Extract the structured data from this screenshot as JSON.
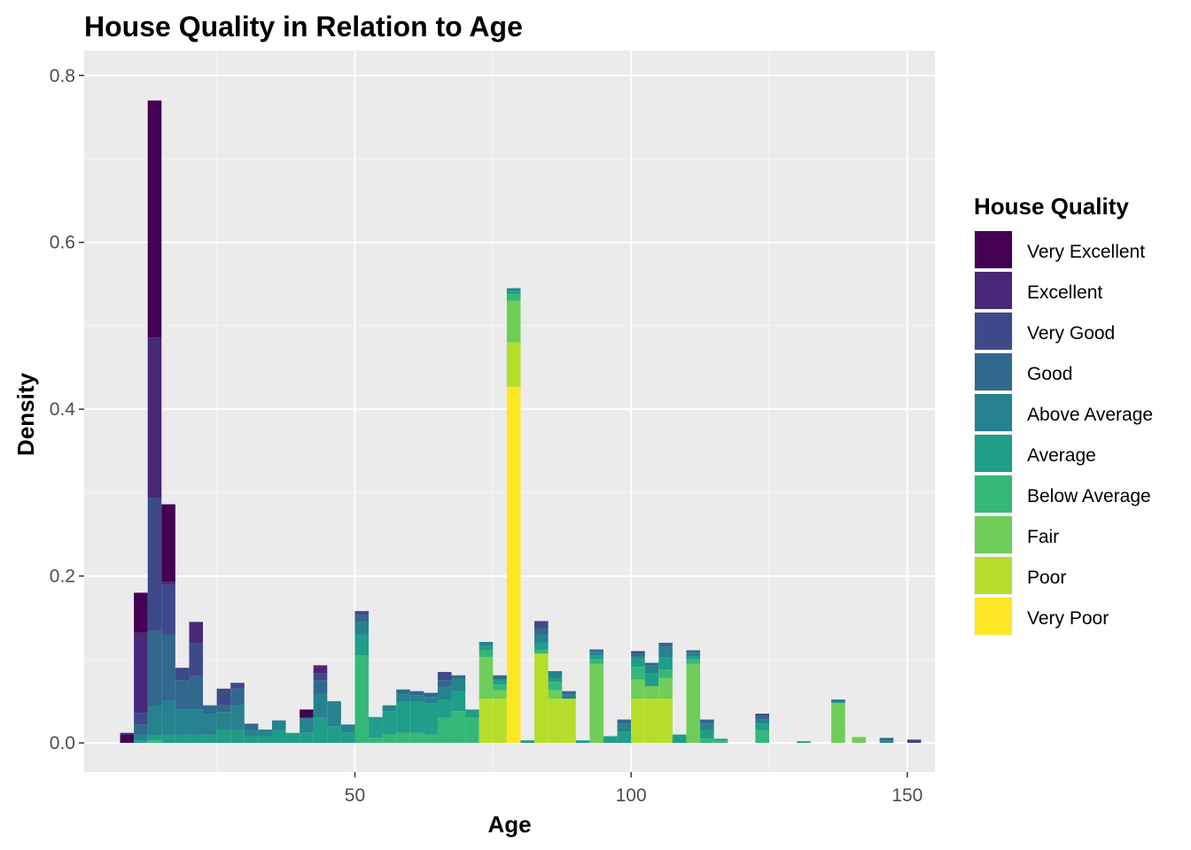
{
  "chart_data": {
    "type": "bar",
    "stacked": true,
    "title": "House Quality in Relation to Age",
    "xlabel": "Age",
    "ylabel": "Density",
    "xlim": [
      1,
      155
    ],
    "ylim": [
      -0.035,
      0.83
    ],
    "x_ticks": [
      50,
      100,
      150
    ],
    "y_ticks": [
      0.0,
      0.2,
      0.4,
      0.6,
      0.8
    ],
    "x_tick_labels": [
      "50",
      "100",
      "150"
    ],
    "y_tick_labels": [
      "0.0",
      "0.2",
      "0.4",
      "0.6",
      "0.8"
    ],
    "x_minor_ticks": [
      25,
      75,
      125
    ],
    "y_minor_ticks": [
      0.1,
      0.3,
      0.5,
      0.7
    ],
    "bin_width": 2.5,
    "grid": true,
    "panel_background": "#ebebeb",
    "legend": {
      "title": "House Quality",
      "position": "right",
      "labels": [
        "Very Excellent",
        "Excellent",
        "Very Good",
        "Good",
        "Above Average",
        "Average",
        "Below Average",
        "Fair",
        "Poor",
        "Very Poor"
      ],
      "colors": [
        "#440154",
        "#482878",
        "#3e4989",
        "#31688e",
        "#26828e",
        "#1f9e89",
        "#35b779",
        "#6ece58",
        "#b5de2b",
        "#fde725"
      ]
    },
    "bins": [
      {
        "x": 8.75,
        "segments": [
          [
            0,
            0.01
          ],
          [
            1,
            0.002
          ]
        ]
      },
      {
        "x": 11.25,
        "segments": [
          [
            5,
            0.003
          ],
          [
            4,
            0.007
          ],
          [
            3,
            0.012
          ],
          [
            2,
            0.014
          ],
          [
            1,
            0.096
          ],
          [
            0,
            0.048
          ]
        ]
      },
      {
        "x": 13.75,
        "segments": [
          [
            6,
            0.003
          ],
          [
            5,
            0.006
          ],
          [
            4,
            0.035
          ],
          [
            3,
            0.09
          ],
          [
            2,
            0.16
          ],
          [
            1,
            0.192
          ],
          [
            0,
            0.284
          ]
        ]
      },
      {
        "x": 16.25,
        "segments": [
          [
            5,
            0.01
          ],
          [
            4,
            0.04
          ],
          [
            3,
            0.08
          ],
          [
            2,
            0.06
          ],
          [
            1,
            0.003
          ],
          [
            0,
            0.093
          ]
        ]
      },
      {
        "x": 18.75,
        "segments": [
          [
            5,
            0.01
          ],
          [
            4,
            0.03
          ],
          [
            3,
            0.035
          ],
          [
            2,
            0.015
          ],
          [
            1,
            0.0
          ],
          [
            0,
            0.0
          ]
        ]
      },
      {
        "x": 21.25,
        "segments": [
          [
            5,
            0.01
          ],
          [
            4,
            0.03
          ],
          [
            3,
            0.04
          ],
          [
            2,
            0.04
          ],
          [
            1,
            0.025
          ]
        ]
      },
      {
        "x": 23.75,
        "segments": [
          [
            5,
            0.01
          ],
          [
            4,
            0.025
          ],
          [
            3,
            0.01
          ]
        ]
      },
      {
        "x": 26.25,
        "segments": [
          [
            5,
            0.015
          ],
          [
            4,
            0.022
          ],
          [
            3,
            0.008
          ],
          [
            2,
            0.02
          ]
        ]
      },
      {
        "x": 28.75,
        "segments": [
          [
            5,
            0.015
          ],
          [
            4,
            0.03
          ],
          [
            3,
            0.02
          ],
          [
            2,
            0.007
          ]
        ]
      },
      {
        "x": 31.25,
        "segments": [
          [
            5,
            0.008
          ],
          [
            4,
            0.007
          ],
          [
            3,
            0.008
          ]
        ]
      },
      {
        "x": 33.75,
        "segments": [
          [
            5,
            0.008
          ],
          [
            4,
            0.008
          ]
        ]
      },
      {
        "x": 36.25,
        "segments": [
          [
            5,
            0.015
          ],
          [
            4,
            0.012
          ]
        ]
      },
      {
        "x": 38.75,
        "segments": [
          [
            5,
            0.012
          ]
        ]
      },
      {
        "x": 41.25,
        "segments": [
          [
            5,
            0.012
          ],
          [
            4,
            0.018
          ],
          [
            3,
            0.0
          ],
          [
            0,
            0.01
          ]
        ]
      },
      {
        "x": 43.75,
        "segments": [
          [
            5,
            0.03
          ],
          [
            4,
            0.03
          ],
          [
            3,
            0.015
          ],
          [
            2,
            0.008
          ],
          [
            1,
            0.01
          ]
        ]
      },
      {
        "x": 46.25,
        "segments": [
          [
            5,
            0.02
          ],
          [
            4,
            0.03
          ]
        ]
      },
      {
        "x": 48.75,
        "segments": [
          [
            5,
            0.012
          ],
          [
            4,
            0.01
          ]
        ]
      },
      {
        "x": 51.25,
        "segments": [
          [
            6,
            0.105
          ],
          [
            5,
            0.025
          ],
          [
            4,
            0.015
          ],
          [
            3,
            0.008
          ],
          [
            2,
            0.005
          ]
        ]
      },
      {
        "x": 53.75,
        "segments": [
          [
            6,
            0.006
          ],
          [
            5,
            0.025
          ]
        ]
      },
      {
        "x": 56.25,
        "segments": [
          [
            6,
            0.01
          ],
          [
            5,
            0.028
          ],
          [
            4,
            0.007
          ]
        ]
      },
      {
        "x": 58.75,
        "segments": [
          [
            6,
            0.012
          ],
          [
            5,
            0.037
          ],
          [
            4,
            0.01
          ],
          [
            3,
            0.005
          ]
        ]
      },
      {
        "x": 61.25,
        "segments": [
          [
            6,
            0.012
          ],
          [
            5,
            0.037
          ],
          [
            4,
            0.008
          ],
          [
            3,
            0.005
          ]
        ]
      },
      {
        "x": 63.75,
        "segments": [
          [
            6,
            0.01
          ],
          [
            5,
            0.037
          ],
          [
            4,
            0.008
          ],
          [
            3,
            0.005
          ]
        ]
      },
      {
        "x": 66.25,
        "segments": [
          [
            6,
            0.03
          ],
          [
            5,
            0.022
          ],
          [
            4,
            0.015
          ],
          [
            3,
            0.008
          ],
          [
            2,
            0.01
          ]
        ]
      },
      {
        "x": 68.75,
        "segments": [
          [
            6,
            0.038
          ],
          [
            5,
            0.024
          ],
          [
            4,
            0.015
          ],
          [
            3,
            0.004
          ]
        ]
      },
      {
        "x": 71.25,
        "segments": [
          [
            6,
            0.03
          ],
          [
            5,
            0.01
          ]
        ]
      },
      {
        "x": 73.75,
        "segments": [
          [
            8,
            0.053
          ],
          [
            7,
            0.05
          ],
          [
            6,
            0.008
          ],
          [
            5,
            0.005
          ],
          [
            4,
            0.005
          ]
        ]
      },
      {
        "x": 76.25,
        "segments": [
          [
            8,
            0.053
          ],
          [
            7,
            0.01
          ],
          [
            6,
            0.007
          ],
          [
            5,
            0.006
          ],
          [
            4,
            0.0
          ],
          [
            3,
            0.005
          ]
        ]
      },
      {
        "x": 78.75,
        "segments": [
          [
            9,
            0.427
          ],
          [
            8,
            0.053
          ],
          [
            7,
            0.05
          ],
          [
            6,
            0.008
          ],
          [
            5,
            0.004
          ],
          [
            4,
            0.003
          ]
        ]
      },
      {
        "x": 81.25,
        "segments": [
          [
            5,
            0.003
          ]
        ]
      },
      {
        "x": 83.75,
        "segments": [
          [
            8,
            0.107
          ],
          [
            7,
            0.0
          ],
          [
            6,
            0.005
          ],
          [
            5,
            0.008
          ],
          [
            4,
            0.01
          ],
          [
            3,
            0.008
          ],
          [
            2,
            0.008
          ]
        ]
      },
      {
        "x": 86.25,
        "segments": [
          [
            8,
            0.053
          ],
          [
            7,
            0.01
          ],
          [
            6,
            0.01
          ],
          [
            5,
            0.005
          ],
          [
            4,
            0.008
          ]
        ]
      },
      {
        "x": 88.75,
        "segments": [
          [
            8,
            0.053
          ],
          [
            4,
            0.005
          ],
          [
            3,
            0.004
          ]
        ]
      },
      {
        "x": 91.25,
        "segments": [
          [
            5,
            0.003
          ]
        ]
      },
      {
        "x": 93.75,
        "segments": [
          [
            7,
            0.095
          ],
          [
            6,
            0.005
          ],
          [
            5,
            0.005
          ],
          [
            4,
            0.004
          ],
          [
            3,
            0.003
          ]
        ]
      },
      {
        "x": 96.25,
        "segments": [
          [
            5,
            0.008
          ]
        ]
      },
      {
        "x": 98.75,
        "segments": [
          [
            5,
            0.013
          ],
          [
            4,
            0.01
          ],
          [
            3,
            0.005
          ]
        ]
      },
      {
        "x": 101.25,
        "segments": [
          [
            8,
            0.053
          ],
          [
            7,
            0.023
          ],
          [
            6,
            0.015
          ],
          [
            5,
            0.01
          ],
          [
            4,
            0.003
          ],
          [
            3,
            0.003
          ],
          [
            2,
            0.003
          ]
        ]
      },
      {
        "x": 103.75,
        "segments": [
          [
            8,
            0.053
          ],
          [
            7,
            0.015
          ],
          [
            5,
            0.015
          ],
          [
            4,
            0.01
          ],
          [
            3,
            0.003
          ]
        ]
      },
      {
        "x": 106.25,
        "segments": [
          [
            8,
            0.053
          ],
          [
            7,
            0.025
          ],
          [
            6,
            0.01
          ],
          [
            5,
            0.015
          ],
          [
            4,
            0.012
          ],
          [
            3,
            0.005
          ]
        ]
      },
      {
        "x": 108.75,
        "segments": [
          [
            5,
            0.01
          ]
        ]
      },
      {
        "x": 111.25,
        "segments": [
          [
            7,
            0.095
          ],
          [
            6,
            0.005
          ],
          [
            5,
            0.004
          ],
          [
            4,
            0.004
          ],
          [
            3,
            0.003
          ]
        ]
      },
      {
        "x": 113.75,
        "segments": [
          [
            6,
            0.005
          ],
          [
            5,
            0.01
          ],
          [
            4,
            0.008
          ],
          [
            3,
            0.005
          ]
        ]
      },
      {
        "x": 116.25,
        "segments": [
          [
            6,
            0.003
          ],
          [
            5,
            0.002
          ]
        ]
      },
      {
        "x": 123.75,
        "segments": [
          [
            6,
            0.015
          ],
          [
            5,
            0.008
          ],
          [
            4,
            0.005
          ],
          [
            3,
            0.004
          ],
          [
            2,
            0.003
          ]
        ]
      },
      {
        "x": 131.25,
        "segments": [
          [
            5,
            0.002
          ]
        ]
      },
      {
        "x": 137.5,
        "segments": [
          [
            7,
            0.048
          ],
          [
            4,
            0.004
          ]
        ]
      },
      {
        "x": 141.25,
        "segments": [
          [
            7,
            0.007
          ]
        ]
      },
      {
        "x": 146.25,
        "segments": [
          [
            4,
            0.003
          ],
          [
            3,
            0.003
          ]
        ]
      },
      {
        "x": 151.25,
        "segments": [
          [
            2,
            0.004
          ]
        ]
      }
    ]
  }
}
